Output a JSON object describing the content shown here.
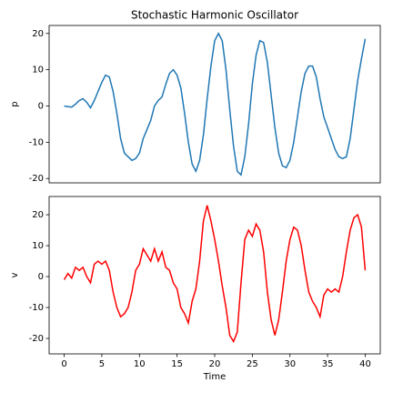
{
  "chart_data": [
    {
      "type": "line",
      "title": "Stochastic Harmonic Oscillator",
      "y_label": "p",
      "x": [
        0,
        0.5,
        1,
        1.5,
        2,
        2.5,
        3,
        3.5,
        4,
        4.5,
        5,
        5.5,
        6,
        6.5,
        7,
        7.5,
        8,
        8.5,
        9,
        9.5,
        10,
        10.5,
        11,
        11.5,
        12,
        12.5,
        13,
        13.5,
        14,
        14.5,
        15,
        15.5,
        16,
        16.5,
        17,
        17.5,
        18,
        18.5,
        19,
        19.5,
        20,
        20.5,
        21,
        21.5,
        22,
        22.5,
        23,
        23.5,
        24,
        24.5,
        25,
        25.5,
        26,
        26.5,
        27,
        27.5,
        28,
        28.5,
        29,
        29.5,
        30,
        30.5,
        31,
        31.5,
        32,
        32.5,
        33,
        33.5,
        34,
        34.5,
        35,
        35.5,
        36,
        36.5,
        37,
        37.5,
        38,
        38.5,
        39,
        39.5,
        40
      ],
      "values": [
        0,
        -0.2,
        -0.3,
        0.5,
        1.5,
        2,
        1,
        -0.5,
        1.5,
        4,
        6.5,
        8.5,
        8,
        4,
        -2,
        -9,
        -13,
        -14,
        -15,
        -14.5,
        -13,
        -9,
        -6.5,
        -4,
        0,
        1.5,
        2.5,
        6,
        9,
        10,
        8.5,
        5,
        -2,
        -10,
        -16,
        -18,
        -15,
        -8,
        2,
        11,
        18,
        20,
        18,
        10,
        -1,
        -11,
        -18,
        -19,
        -14,
        -5,
        6,
        14,
        18,
        17.5,
        12,
        3,
        -6,
        -13,
        -16.5,
        -17,
        -15,
        -10,
        -3,
        4,
        9,
        11,
        11,
        8,
        2,
        -3,
        -6,
        -9,
        -12,
        -14,
        -14.5,
        -14,
        -9,
        -1,
        7,
        13,
        18.5
      ],
      "color": "#1f77b4",
      "xlim": [
        -2,
        42
      ],
      "ylim": [
        -21.2,
        22.2
      ],
      "yticks": [
        -20,
        -10,
        0,
        10,
        20
      ]
    },
    {
      "type": "line",
      "x_label": "Time",
      "y_label": "v",
      "x": [
        0,
        0.5,
        1,
        1.5,
        2,
        2.5,
        3,
        3.5,
        4,
        4.5,
        5,
        5.5,
        6,
        6.5,
        7,
        7.5,
        8,
        8.5,
        9,
        9.5,
        10,
        10.5,
        11,
        11.5,
        12,
        12.5,
        13,
        13.5,
        14,
        14.5,
        15,
        15.5,
        16,
        16.5,
        17,
        17.5,
        18,
        18.5,
        19,
        19.5,
        20,
        20.5,
        21,
        21.5,
        22,
        22.5,
        23,
        23.5,
        24,
        24.5,
        25,
        25.5,
        26,
        26.5,
        27,
        27.5,
        28,
        28.5,
        29,
        29.5,
        30,
        30.5,
        31,
        31.5,
        32,
        32.5,
        33,
        33.5,
        34,
        34.5,
        35,
        35.5,
        36,
        36.5,
        37,
        37.5,
        38,
        38.5,
        39,
        39.5,
        40
      ],
      "values": [
        -1,
        1,
        -0.5,
        3,
        2,
        3,
        0,
        -2,
        4,
        5,
        4,
        5,
        2,
        -5,
        -10,
        -13,
        -12,
        -10,
        -5,
        2,
        4,
        9,
        7,
        5,
        9,
        5,
        8,
        3,
        2,
        -2,
        -4,
        -10,
        -12,
        -15,
        -8,
        -4,
        5,
        18,
        23,
        18,
        12,
        5,
        -3,
        -10,
        -19,
        -21,
        -18,
        -2,
        12,
        15,
        13,
        17,
        15,
        8,
        -5,
        -14,
        -19,
        -14,
        -5,
        5,
        12,
        16,
        15,
        10,
        2,
        -5,
        -8,
        -10,
        -13,
        -6,
        -4,
        -5,
        -4,
        -5,
        0,
        8,
        15,
        19,
        20,
        16,
        2
      ],
      "color": "#ff0000",
      "xlim": [
        -2,
        42
      ],
      "ylim": [
        -25,
        25.9
      ],
      "xticks": [
        0,
        5,
        10,
        15,
        20,
        25,
        30,
        35,
        40
      ],
      "yticks": [
        -20,
        -10,
        0,
        10,
        20
      ]
    }
  ]
}
